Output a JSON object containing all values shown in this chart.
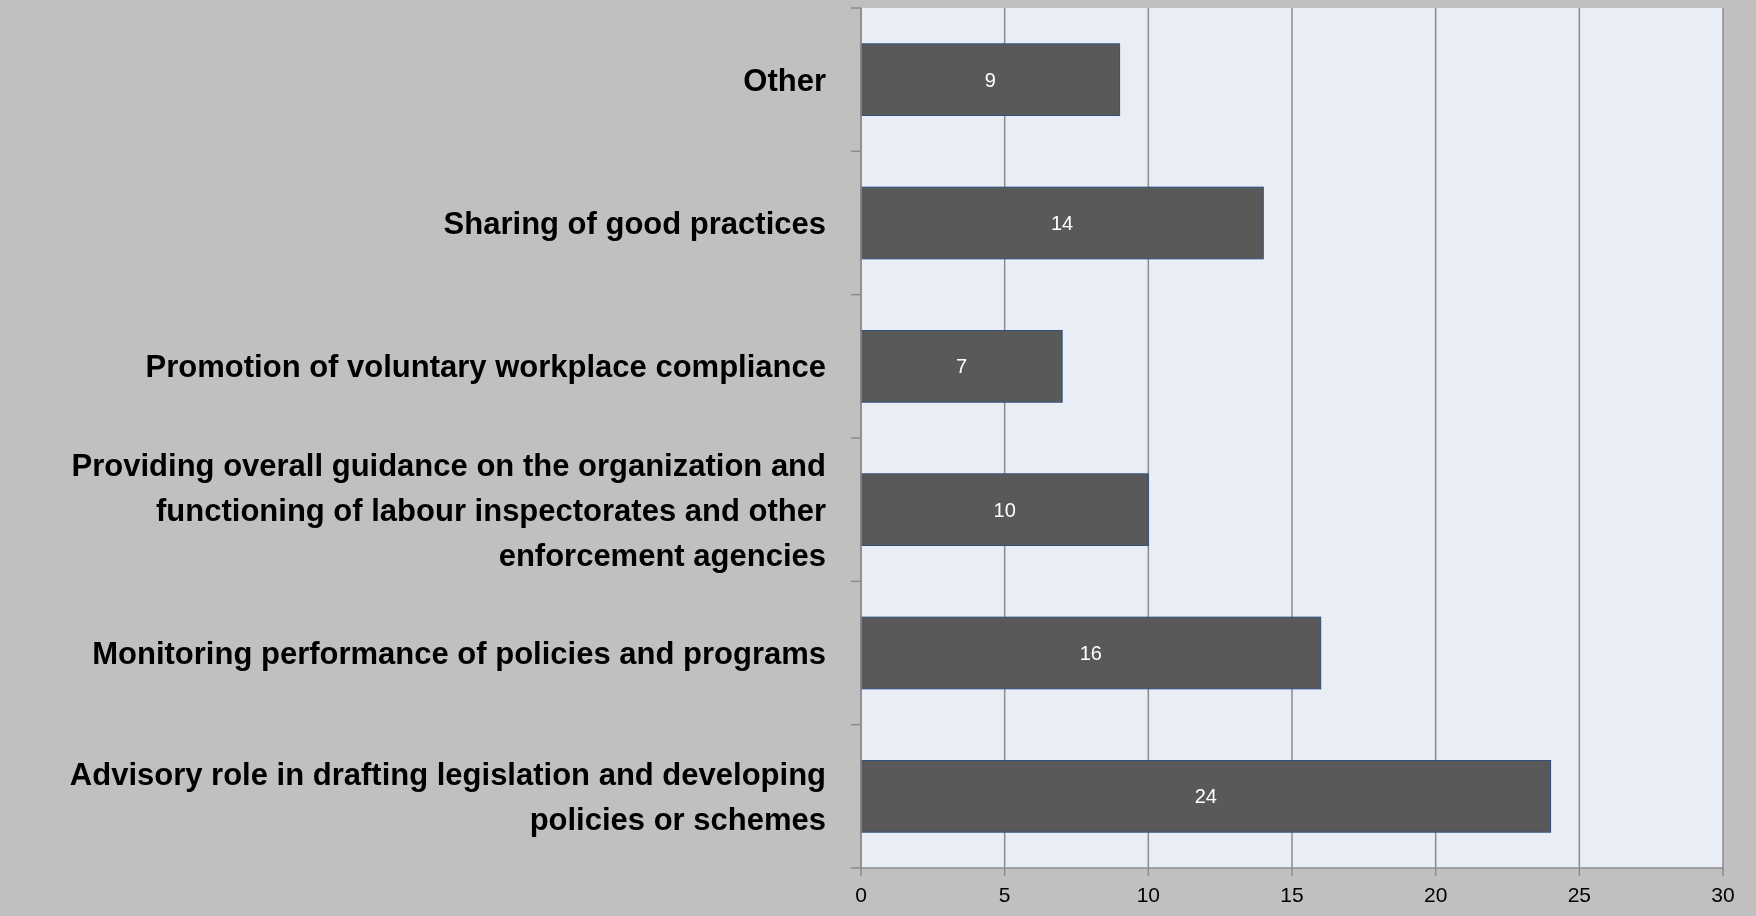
{
  "chart_data": {
    "type": "bar",
    "orientation": "horizontal",
    "categories": [
      "Other",
      "Sharing of good practices",
      "Promotion of voluntary workplace compliance",
      "Providing overall guidance on the organization and functioning of labour inspectorates and other enforcement agencies",
      "Monitoring performance of policies and programs",
      "Advisory role in drafting legislation and developing policies or schemes"
    ],
    "values": [
      9,
      14,
      7,
      10,
      16,
      24
    ],
    "color": "#595959",
    "xlim": [
      0,
      30
    ],
    "xticks": [
      0,
      5,
      10,
      15,
      20,
      25,
      30
    ],
    "grid": "x",
    "data_labels": true
  }
}
